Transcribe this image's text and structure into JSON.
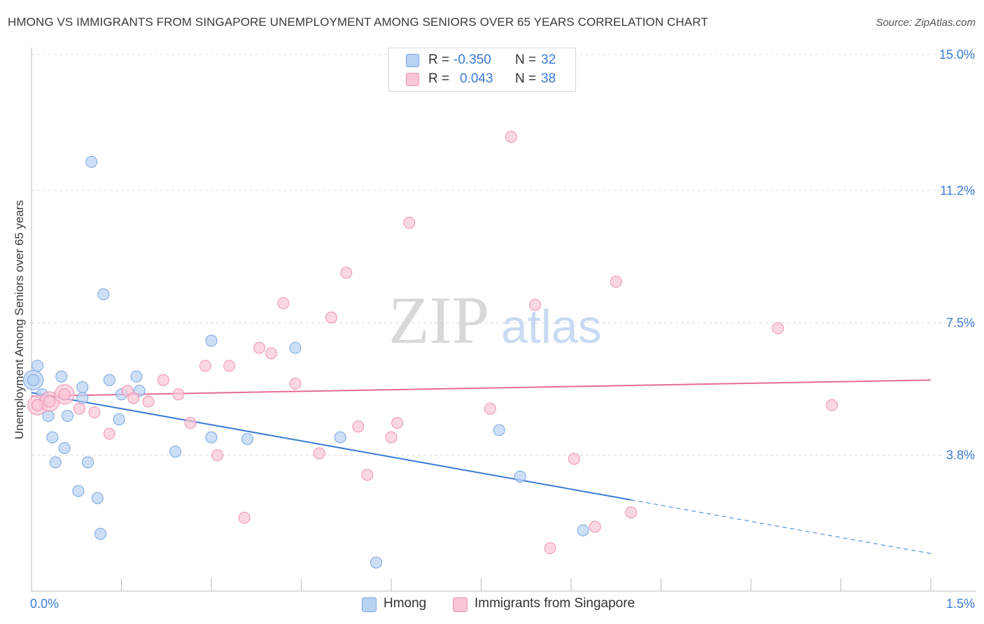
{
  "title": "HMONG VS IMMIGRANTS FROM SINGAPORE UNEMPLOYMENT AMONG SENIORS OVER 65 YEARS CORRELATION CHART",
  "source": "Source: ZipAtlas.com",
  "watermark": {
    "zip": "ZIP",
    "atlas": "atlas"
  },
  "colors": {
    "hmong_fill": "#b8d2f3",
    "hmong_stroke": "#7aa6e0",
    "hmong_line": "#3a7bd5",
    "sing_fill": "#f9c6d6",
    "sing_stroke": "#ee93b0",
    "sing_line": "#e56c95",
    "accent_text": "#3a7bd5",
    "grid": "#dcdcdc"
  },
  "legend": {
    "rows": [
      {
        "r_label": "R =",
        "r_value": "-0.350",
        "n_label": "N =",
        "n_value": "32"
      },
      {
        "r_label": "R =",
        "r_value": "0.043",
        "n_label": "N =",
        "n_value": "38"
      }
    ],
    "bottom": [
      "Hmong",
      "Immigrants from Singapore"
    ]
  },
  "chart_data": {
    "type": "scatter",
    "title": "HMONG VS IMMIGRANTS FROM SINGAPORE UNEMPLOYMENT AMONG SENIORS OVER 65 YEARS CORRELATION CHART",
    "xlabel": "",
    "ylabel": "Unemployment Among Seniors over 65 years",
    "xlim": [
      0,
      1.5
    ],
    "ylim": [
      0,
      15
    ],
    "x_tick_labels": [
      "0.0%",
      "1.5%"
    ],
    "y_ticks": [
      3.8,
      7.5,
      11.2,
      15.0
    ],
    "y_tick_labels": [
      "3.8%",
      "7.5%",
      "11.2%",
      "15.0%"
    ],
    "grid": true,
    "series": [
      {
        "name": "Hmong",
        "r": -0.35,
        "n": 32,
        "points": [
          [
            0.003,
            5.9
          ],
          [
            0.01,
            6.3
          ],
          [
            0.018,
            5.5
          ],
          [
            0.028,
            4.9
          ],
          [
            0.035,
            4.3
          ],
          [
            0.04,
            3.6
          ],
          [
            0.05,
            6.0
          ],
          [
            0.055,
            4.0
          ],
          [
            0.06,
            4.9
          ],
          [
            0.078,
            2.8
          ],
          [
            0.085,
            5.7
          ],
          [
            0.085,
            5.4
          ],
          [
            0.094,
            3.6
          ],
          [
            0.1,
            12.0
          ],
          [
            0.11,
            2.6
          ],
          [
            0.115,
            1.6
          ],
          [
            0.12,
            8.3
          ],
          [
            0.13,
            5.9
          ],
          [
            0.146,
            4.8
          ],
          [
            0.15,
            5.5
          ],
          [
            0.175,
            6.0
          ],
          [
            0.18,
            5.6
          ],
          [
            0.24,
            3.9
          ],
          [
            0.3,
            7.0
          ],
          [
            0.3,
            4.3
          ],
          [
            0.36,
            4.25
          ],
          [
            0.44,
            6.8
          ],
          [
            0.515,
            4.3
          ],
          [
            0.575,
            0.8
          ],
          [
            0.78,
            4.5
          ],
          [
            0.815,
            3.2
          ],
          [
            0.92,
            1.7
          ]
        ],
        "trend": {
          "x0": 0.0,
          "y0": 5.55,
          "x1": 1.0,
          "y1": 2.55,
          "dashed_to_x": 1.5,
          "dashed_to_y": 1.05
        },
        "big_points": [
          [
            0.003,
            5.9
          ]
        ]
      },
      {
        "name": "Immigrants from Singapore",
        "r": 0.043,
        "n": 38,
        "points": [
          [
            0.01,
            5.2
          ],
          [
            0.03,
            5.3
          ],
          [
            0.055,
            5.5
          ],
          [
            0.08,
            5.1
          ],
          [
            0.105,
            5.0
          ],
          [
            0.13,
            4.4
          ],
          [
            0.16,
            5.6
          ],
          [
            0.17,
            5.4
          ],
          [
            0.195,
            5.3
          ],
          [
            0.22,
            5.9
          ],
          [
            0.245,
            5.5
          ],
          [
            0.265,
            4.7
          ],
          [
            0.29,
            6.3
          ],
          [
            0.31,
            3.8
          ],
          [
            0.33,
            6.3
          ],
          [
            0.355,
            2.05
          ],
          [
            0.38,
            6.8
          ],
          [
            0.4,
            6.65
          ],
          [
            0.42,
            8.05
          ],
          [
            0.44,
            5.8
          ],
          [
            0.48,
            3.85
          ],
          [
            0.5,
            7.65
          ],
          [
            0.525,
            8.9
          ],
          [
            0.545,
            4.6
          ],
          [
            0.56,
            3.25
          ],
          [
            0.6,
            4.3
          ],
          [
            0.61,
            4.7
          ],
          [
            0.63,
            10.3
          ],
          [
            0.765,
            5.1
          ],
          [
            0.8,
            12.7
          ],
          [
            0.84,
            8.0
          ],
          [
            0.865,
            1.2
          ],
          [
            0.905,
            3.7
          ],
          [
            0.94,
            1.8
          ],
          [
            0.975,
            8.65
          ],
          [
            1.0,
            2.2
          ],
          [
            1.245,
            7.35
          ],
          [
            1.335,
            5.2
          ]
        ],
        "trend": {
          "x0": 0.0,
          "y0": 5.45,
          "x1": 1.5,
          "y1": 5.9
        },
        "big_points": [
          [
            0.01,
            5.2
          ],
          [
            0.03,
            5.3
          ],
          [
            0.055,
            5.5
          ]
        ]
      }
    ]
  }
}
